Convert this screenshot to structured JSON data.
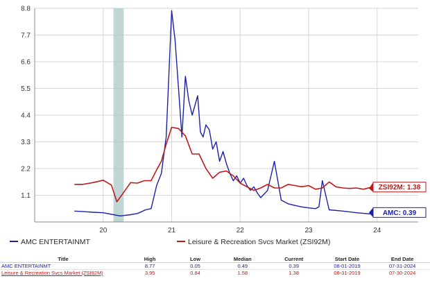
{
  "chart_data": {
    "type": "line",
    "y_ticks": [
      "1.1",
      "2.2",
      "3.3",
      "4.4",
      "5.5",
      "6.6",
      "7.7",
      "8.8"
    ],
    "x_ticks": [
      "20",
      "21",
      "22",
      "23",
      "24"
    ],
    "ylim": [
      0,
      8.8
    ],
    "xlim": [
      2019.0,
      2024.6
    ],
    "grid": "both",
    "recession_band": [
      2020.15,
      2020.3
    ],
    "series": [
      {
        "name": "AMC ENTERTAINMT",
        "color": "#1b1faa",
        "end_label": "AMC: 0.39",
        "x": [
          2019.58,
          2019.7,
          2019.85,
          2020.0,
          2020.15,
          2020.25,
          2020.4,
          2020.5,
          2020.62,
          2020.7,
          2020.78,
          2020.85,
          2020.92,
          2021.0,
          2021.05,
          2021.1,
          2021.15,
          2021.2,
          2021.25,
          2021.3,
          2021.38,
          2021.42,
          2021.46,
          2021.5,
          2021.55,
          2021.6,
          2021.65,
          2021.7,
          2021.75,
          2021.8,
          2021.85,
          2021.9,
          2021.95,
          2022.0,
          2022.05,
          2022.1,
          2022.15,
          2022.2,
          2022.25,
          2022.3,
          2022.4,
          2022.5,
          2022.6,
          2022.7,
          2022.8,
          2022.9,
          2023.0,
          2023.1,
          2023.15,
          2023.2,
          2023.3,
          2023.5,
          2023.7,
          2023.9,
          2024.1,
          2024.2,
          2024.3,
          2024.4,
          2024.5,
          2024.58
        ],
        "y": [
          0.45,
          0.43,
          0.4,
          0.38,
          0.3,
          0.25,
          0.3,
          0.35,
          0.5,
          0.55,
          1.5,
          2.0,
          3.5,
          8.7,
          7.5,
          5.5,
          3.5,
          6.0,
          5.0,
          4.4,
          5.2,
          3.7,
          3.5,
          4.0,
          3.8,
          3.0,
          3.3,
          2.5,
          2.9,
          2.4,
          2.0,
          1.7,
          1.9,
          1.6,
          1.8,
          1.5,
          1.3,
          1.45,
          1.2,
          1.0,
          1.3,
          2.5,
          0.9,
          0.75,
          0.68,
          0.62,
          0.58,
          0.55,
          0.62,
          1.7,
          0.5,
          0.45,
          0.38,
          0.33,
          0.3,
          0.34,
          0.3,
          0.36,
          0.38,
          0.39
        ]
      },
      {
        "name": "Leisure & Recreation Svcs Market (ZSI92M)",
        "color": "#c01818",
        "end_label": "ZSI92M: 1.38",
        "x": [
          2019.58,
          2019.7,
          2019.85,
          2020.0,
          2020.12,
          2020.2,
          2020.3,
          2020.4,
          2020.5,
          2020.6,
          2020.7,
          2020.78,
          2020.85,
          2020.92,
          2021.0,
          2021.1,
          2021.2,
          2021.3,
          2021.4,
          2021.5,
          2021.6,
          2021.7,
          2021.8,
          2021.9,
          2022.0,
          2022.1,
          2022.2,
          2022.3,
          2022.4,
          2022.5,
          2022.6,
          2022.7,
          2022.8,
          2022.9,
          2023.0,
          2023.1,
          2023.2,
          2023.3,
          2023.4,
          2023.5,
          2023.6,
          2023.7,
          2023.8,
          2023.9,
          2024.0,
          2024.1,
          2024.2,
          2024.3,
          2024.4,
          2024.5,
          2024.58
        ],
        "y": [
          1.55,
          1.55,
          1.62,
          1.72,
          1.52,
          0.83,
          1.22,
          1.62,
          1.6,
          1.7,
          1.7,
          2.15,
          2.5,
          3.2,
          3.9,
          3.85,
          3.55,
          2.8,
          2.8,
          2.2,
          1.8,
          2.05,
          2.1,
          1.9,
          1.6,
          1.45,
          1.3,
          1.4,
          1.55,
          1.4,
          1.4,
          1.55,
          1.5,
          1.45,
          1.5,
          1.35,
          1.4,
          1.65,
          1.45,
          1.4,
          1.38,
          1.4,
          1.35,
          1.42,
          1.35,
          1.38,
          1.42,
          1.35,
          1.4,
          1.38,
          1.38
        ]
      }
    ]
  },
  "legend": [
    {
      "label": "AMC ENTERTAINMT",
      "color": "#1b1faa"
    },
    {
      "label": "Leisure & Recreation Svcs Market (ZSI92M)",
      "color": "#c01818"
    }
  ],
  "stats_table": {
    "headers": [
      "Title",
      "High",
      "Low",
      "Median",
      "Current",
      "Start Date",
      "End Date"
    ],
    "rows": [
      [
        "AMC ENTERTAINMT",
        "8.77",
        "0.05",
        "0.49",
        "0.39",
        "08-01-2019",
        "07-31-2024"
      ],
      [
        "Leisure & Recreation Svcs Market (ZSI92M)",
        "3.95",
        "0.84",
        "1.58",
        "1.38",
        "08-31-2019",
        "07-30-2024"
      ]
    ]
  }
}
